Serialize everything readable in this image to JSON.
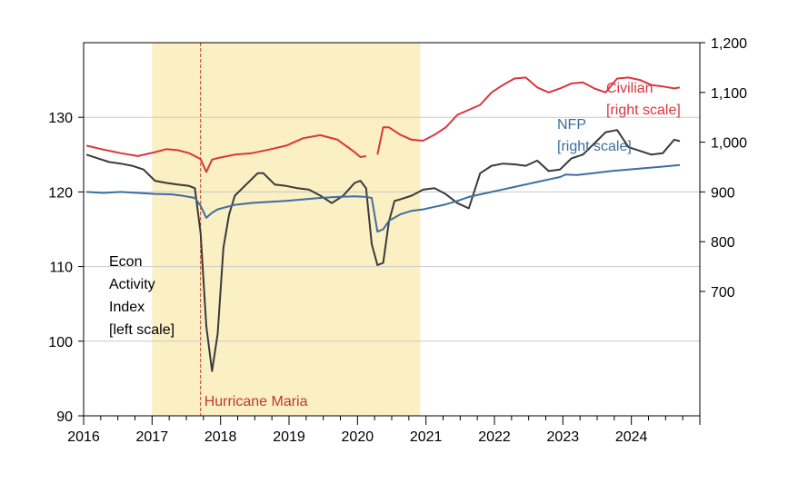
{
  "chart_data": {
    "type": "line",
    "x_range": [
      "2016-01",
      "2024-12"
    ],
    "x_ticks": [
      "2016",
      "2017",
      "2018",
      "2019",
      "2020",
      "2021",
      "2022",
      "2023",
      "2024"
    ],
    "left_axis": {
      "ylim": [
        90,
        140
      ],
      "ticks": [
        "90",
        "100",
        "110",
        "120",
        "130"
      ]
    },
    "right_axis": {
      "ylim": [
        450,
        1200
      ],
      "ticks": [
        "700",
        "800",
        "900",
        "1,000",
        "1,100",
        "1,200"
      ]
    },
    "grid": "horizontal at left-axis ticks",
    "shaded_period": {
      "start": "2017-01",
      "end": "2020-12",
      "color": "#fbefc4"
    },
    "event_line": {
      "date": "2017-09",
      "label": "Hurricane Maria",
      "color": "#c0392b"
    },
    "series": [
      {
        "name": "Econ Activity Index",
        "label_lines": [
          "Econ",
          "Activity",
          "Index",
          "[left scale]"
        ],
        "axis": "left",
        "color": "#3a3a3a",
        "x": [
          "2016-01",
          "2016-03",
          "2016-05",
          "2016-07",
          "2016-09",
          "2016-11",
          "2017-01",
          "2017-03",
          "2017-05",
          "2017-07",
          "2017-08",
          "2017-09",
          "2017-10",
          "2017-11",
          "2017-12",
          "2018-01",
          "2018-02",
          "2018-03",
          "2018-05",
          "2018-07",
          "2018-08",
          "2018-10",
          "2018-12",
          "2019-02",
          "2019-04",
          "2019-06",
          "2019-08",
          "2019-10",
          "2019-12",
          "2020-01",
          "2020-02",
          "2020-03",
          "2020-04",
          "2020-05",
          "2020-06",
          "2020-07",
          "2020-08",
          "2020-10",
          "2020-12",
          "2021-02",
          "2021-04",
          "2021-06",
          "2021-08",
          "2021-10",
          "2021-12",
          "2022-02",
          "2022-04",
          "2022-06",
          "2022-08",
          "2022-10",
          "2022-12",
          "2023-02",
          "2023-04",
          "2023-06",
          "2023-08",
          "2023-10",
          "2023-12",
          "2024-02",
          "2024-04",
          "2024-06",
          "2024-08",
          "2024-09"
        ],
        "y": [
          125,
          124.5,
          124,
          123.8,
          123.5,
          123,
          121.5,
          121.2,
          121,
          120.8,
          120.5,
          114.5,
          102,
          96,
          101,
          112.5,
          117,
          119.5,
          121,
          122.5,
          122.5,
          121,
          120.8,
          120.5,
          120.3,
          119.5,
          118.5,
          119.5,
          121.2,
          121.5,
          120.5,
          113,
          110.2,
          110.5,
          116,
          118.8,
          119,
          119.5,
          120.3,
          120.5,
          119.7,
          118.5,
          117.8,
          122.5,
          123.5,
          123.8,
          123.7,
          123.5,
          124.2,
          122.8,
          123,
          124.5,
          125,
          126.5,
          128,
          128.3,
          126,
          125.5,
          125,
          125.2,
          127,
          126.8
        ]
      },
      {
        "name": "NFP",
        "label_lines": [
          "NFP",
          "[right scale]"
        ],
        "axis": "right",
        "color": "#3e6e9e",
        "x": [
          "2016-01",
          "2016-04",
          "2016-07",
          "2016-10",
          "2017-01",
          "2017-04",
          "2017-06",
          "2017-07",
          "2017-08",
          "2017-09",
          "2017-10",
          "2017-11",
          "2017-12",
          "2018-01",
          "2018-03",
          "2018-06",
          "2018-09",
          "2018-12",
          "2019-03",
          "2019-06",
          "2019-09",
          "2019-12",
          "2020-02",
          "2020-03",
          "2020-04",
          "2020-05",
          "2020-06",
          "2020-08",
          "2020-10",
          "2020-12",
          "2021-02",
          "2021-04",
          "2021-06",
          "2021-08",
          "2021-10",
          "2021-12",
          "2022-02",
          "2022-04",
          "2022-06",
          "2022-08",
          "2022-10",
          "2022-12",
          "2023-01",
          "2023-03",
          "2023-06",
          "2023-09",
          "2023-12",
          "2024-03",
          "2024-06",
          "2024-09"
        ],
        "y": [
          900,
          898,
          900,
          898,
          896,
          895,
          892,
          890,
          888,
          872,
          848,
          858,
          865,
          868,
          874,
          878,
          880,
          882,
          885,
          888,
          890,
          891,
          890,
          888,
          820,
          825,
          842,
          855,
          862,
          865,
          870,
          875,
          882,
          890,
          895,
          900,
          905,
          910,
          915,
          920,
          925,
          930,
          935,
          934,
          938,
          942,
          945,
          948,
          951,
          954
        ]
      },
      {
        "name": "Civilian",
        "label_lines": [
          "Civilian",
          "[right scale]"
        ],
        "axis": "right",
        "color": "#d9363e",
        "x": [
          "2016-01",
          "2016-04",
          "2016-07",
          "2016-10",
          "2017-01",
          "2017-03",
          "2017-05",
          "2017-07",
          "2017-08",
          "2017-09",
          "2017-10",
          "2017-11",
          "2017-12",
          "2018-03",
          "2018-06",
          "2018-09",
          "2018-12",
          "2019-03",
          "2019-06",
          "2019-09",
          "2019-12",
          "2020-01",
          "2020-02",
          null,
          "2020-04",
          "2020-05",
          "2020-06",
          "2020-08",
          "2020-10",
          "2020-12",
          "2021-02",
          "2021-04",
          "2021-06",
          "2021-08",
          "2021-10",
          "2021-12",
          "2022-02",
          "2022-04",
          "2022-06",
          "2022-08",
          "2022-10",
          "2022-12",
          "2023-02",
          "2023-04",
          "2023-06",
          "2023-08",
          "2023-10",
          "2023-12",
          "2024-02",
          "2024-04",
          "2024-06",
          "2024-08",
          "2024-09"
        ],
        "y": [
          993,
          985,
          978,
          972,
          980,
          986,
          984,
          978,
          972,
          966,
          940,
          965,
          968,
          975,
          978,
          985,
          993,
          1008,
          1014,
          1005,
          980,
          970,
          972,
          null,
          975,
          1030,
          1030,
          1015,
          1005,
          1003,
          1015,
          1030,
          1055,
          1065,
          1075,
          1100,
          1115,
          1128,
          1130,
          1110,
          1100,
          1108,
          1118,
          1120,
          1108,
          1100,
          1128,
          1130,
          1125,
          1115,
          1112,
          1108,
          1110
        ]
      }
    ]
  }
}
